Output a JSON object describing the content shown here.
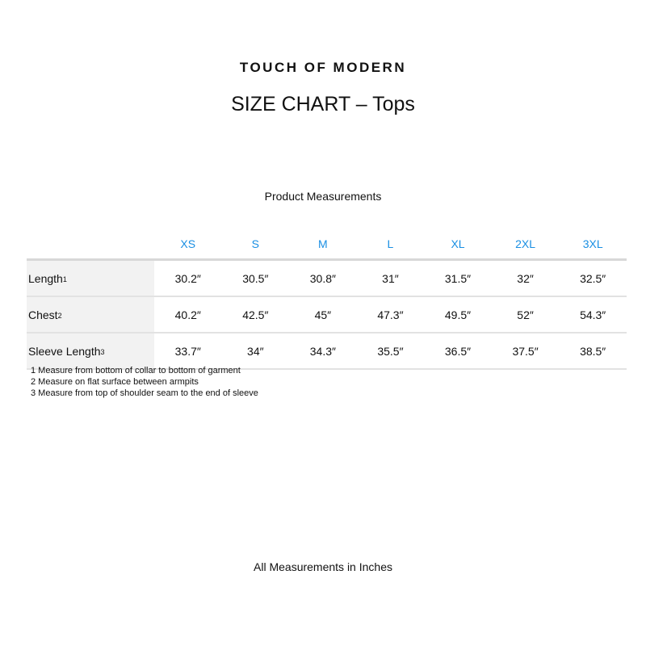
{
  "brand": "TOUCH OF MODERN",
  "title": "SIZE CHART – Tops",
  "subtitle": "Product Measurements",
  "sizes": [
    "XS",
    "S",
    "M",
    "L",
    "XL",
    "2XL",
    "3XL"
  ],
  "rows": [
    {
      "label": "Length",
      "sup": "1",
      "values": [
        "30.2″",
        "30.5″",
        "30.8″",
        "31″",
        "31.5″",
        "32″",
        "32.5″"
      ]
    },
    {
      "label": "Chest",
      "sup": "2",
      "values": [
        "40.2″",
        "42.5″",
        "45″",
        "47.3″",
        "49.5″",
        "52″",
        "54.3″"
      ]
    },
    {
      "label": "Sleeve Length",
      "sup": "3",
      "values": [
        "33.7″",
        "34″",
        "34.3″",
        "35.5″",
        "36.5″",
        "37.5″",
        "38.5″"
      ]
    }
  ],
  "notes": [
    "1 Measure from bottom of collar to bottom of garment",
    "2 Measure on flat surface between armpits",
    "3 Measure from top of shoulder seam to the end of sleeve"
  ],
  "footer": "All Measurements in Inches",
  "colors": {
    "size_header": "#1a8fe3",
    "label_bg": "#f2f2f2"
  }
}
